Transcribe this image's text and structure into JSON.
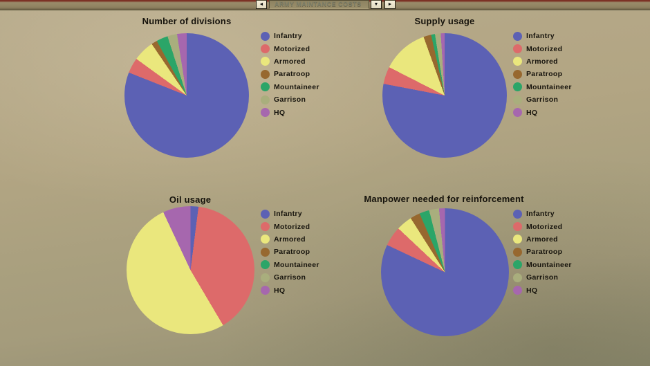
{
  "topbar": {
    "selector_value": "ARMY MAINTANCE COSTS",
    "prev_icon": "◄",
    "dropdown_icon": "▼",
    "next_icon": "►"
  },
  "legend": {
    "labels": [
      "Infantry",
      "Motorized",
      "Armored",
      "Paratroop",
      "Mountaineer",
      "Garrison",
      "HQ"
    ],
    "colors": [
      "#5c61b4",
      "#dd6a6a",
      "#eae77d",
      "#97682f",
      "#2ba568",
      "#a9ae7d",
      "#a667ae"
    ],
    "position": "right"
  },
  "chart_data": [
    {
      "type": "pie",
      "title": "Number of divisions",
      "categories": [
        "Infantry",
        "Motorized",
        "Armored",
        "Paratroop",
        "Mountaineer",
        "Garrison",
        "HQ"
      ],
      "values": [
        81,
        4,
        5.5,
        1.5,
        3,
        2.5,
        2.5
      ],
      "units": "percent",
      "start_angle_deg": 0,
      "direction": "clockwise",
      "legend_position": "right"
    },
    {
      "type": "pie",
      "title": "Supply usage",
      "categories": [
        "Infantry",
        "Motorized",
        "Armored",
        "Paratroop",
        "Mountaineer",
        "Garrison",
        "HQ"
      ],
      "values": [
        78,
        4.5,
        12,
        2,
        1,
        1.5,
        1
      ],
      "units": "percent",
      "start_angle_deg": 0,
      "direction": "clockwise",
      "legend_position": "right"
    },
    {
      "type": "pie",
      "title": "Oil usage",
      "categories": [
        "Infantry",
        "Motorized",
        "Armored",
        "Paratroop",
        "Mountaineer",
        "Garrison",
        "HQ"
      ],
      "values": [
        2,
        39.5,
        51.5,
        0,
        0,
        0,
        7
      ],
      "units": "percent",
      "start_angle_deg": 0,
      "direction": "clockwise",
      "legend_position": "right"
    },
    {
      "type": "pie",
      "title": "Manpower needed for reinforcement",
      "categories": [
        "Infantry",
        "Motorized",
        "Armored",
        "Paratroop",
        "Mountaineer",
        "Garrison",
        "HQ"
      ],
      "values": [
        82,
        5,
        4,
        2.5,
        2.5,
        2.5,
        1.5
      ],
      "units": "percent",
      "start_angle_deg": 0,
      "direction": "clockwise",
      "legend_position": "right"
    }
  ]
}
